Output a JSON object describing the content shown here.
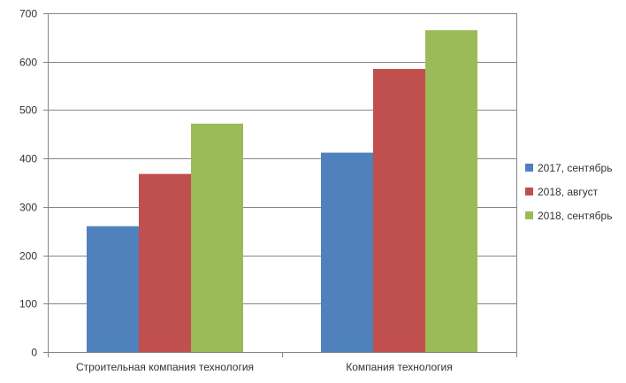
{
  "chart_data": {
    "type": "bar",
    "categories": [
      "Строительная компания технология",
      "Компания технология"
    ],
    "series": [
      {
        "name": "2017, сентябрь",
        "values": [
          260,
          412
        ],
        "color": "#4F81BD"
      },
      {
        "name": "2018, август",
        "values": [
          368,
          585
        ],
        "color": "#C0504D"
      },
      {
        "name": "2018, сентябрь",
        "values": [
          472,
          665
        ],
        "color": "#9BBB59"
      }
    ],
    "ylim": [
      0,
      700
    ],
    "yticks": [
      0,
      100,
      200,
      300,
      400,
      500,
      600,
      700
    ],
    "grid": true,
    "legend": "right"
  }
}
